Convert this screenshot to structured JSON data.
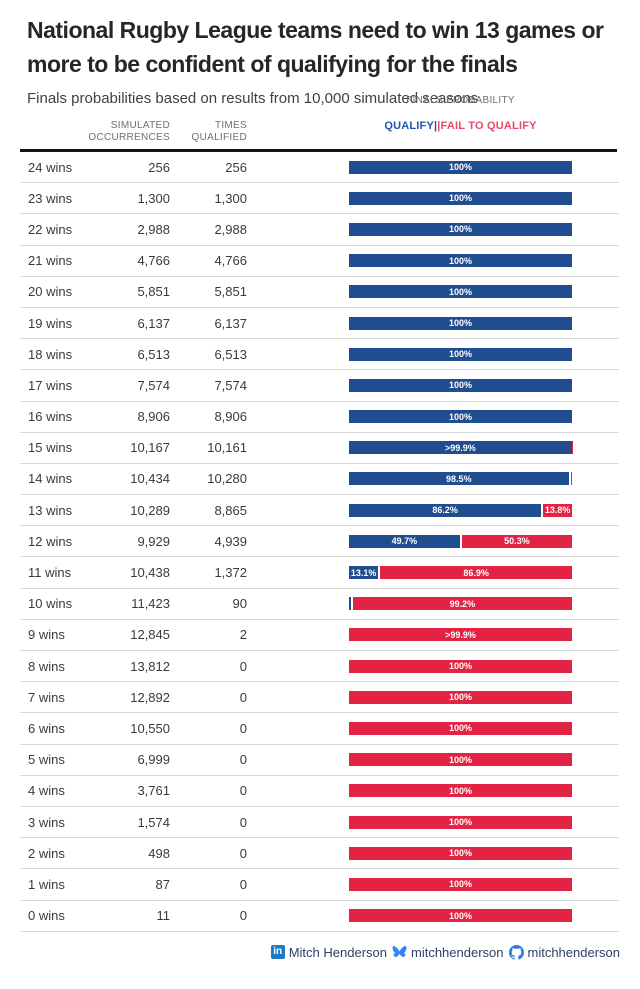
{
  "header": {
    "title_lines": [
      "National Rugby League teams need to win 13 games or",
      "more to be confident of qualifying for the finals"
    ],
    "subtitle": "Finals probabilities based on results from 10,000 simulated seasons"
  },
  "table_header": {
    "occurrences": "SIMULATED\nOCCURRENCES",
    "qualified": "TIMES\nQUALIFIED",
    "probability": "FINALS PROBABILITY",
    "legend_qualify": "QUALIFY|",
    "legend_fail": "|FAIL TO QUALIFY"
  },
  "colors": {
    "qualify_bar": "#1f4d8f",
    "fail_bar": "#e32344",
    "legend_qualify": "#2456a4",
    "legend_fail": "#e8486a",
    "rule": "#141414",
    "row_divider": "#d9d9d9"
  },
  "footer": {
    "linkedin_label": "Mitch Henderson",
    "bluesky_label": "mitchhenderson",
    "github_label": "mitchhenderson",
    "linkedin_icon_color": "#2079c7",
    "bluesky_icon_color": "#3385f4",
    "github_icon_color": "#2d7ed6"
  },
  "chart_data": {
    "type": "bar",
    "subtype": "horizontal-stacked-100pct-with-table",
    "title": "National Rugby League teams need to win 13 games or more to be confident of qualifying for the finals",
    "subtitle": "Finals probabilities based on results from 10,000 simulated seasons",
    "xlabel": "Finals probability (%)",
    "xlim": [
      0,
      100
    ],
    "legend": [
      "QUALIFY",
      "FAIL TO QUALIFY"
    ],
    "legend_position": "top",
    "grid": false,
    "columns": [
      "wins",
      "simulated occurrences",
      "times qualified",
      "qualify %",
      "fail to qualify %"
    ],
    "rows": [
      {
        "label": "24 wins",
        "occurrences": "256",
        "qualified": "256",
        "qualify_pct": 100,
        "fail_pct": 0,
        "qualify_label": "100%",
        "fail_label": ""
      },
      {
        "label": "23 wins",
        "occurrences": "1,300",
        "qualified": "1,300",
        "qualify_pct": 100,
        "fail_pct": 0,
        "qualify_label": "100%",
        "fail_label": ""
      },
      {
        "label": "22 wins",
        "occurrences": "2,988",
        "qualified": "2,988",
        "qualify_pct": 100,
        "fail_pct": 0,
        "qualify_label": "100%",
        "fail_label": ""
      },
      {
        "label": "21 wins",
        "occurrences": "4,766",
        "qualified": "4,766",
        "qualify_pct": 100,
        "fail_pct": 0,
        "qualify_label": "100%",
        "fail_label": ""
      },
      {
        "label": "20 wins",
        "occurrences": "5,851",
        "qualified": "5,851",
        "qualify_pct": 100,
        "fail_pct": 0,
        "qualify_label": "100%",
        "fail_label": ""
      },
      {
        "label": "19 wins",
        "occurrences": "6,137",
        "qualified": "6,137",
        "qualify_pct": 100,
        "fail_pct": 0,
        "qualify_label": "100%",
        "fail_label": ""
      },
      {
        "label": "18 wins",
        "occurrences": "6,513",
        "qualified": "6,513",
        "qualify_pct": 100,
        "fail_pct": 0,
        "qualify_label": "100%",
        "fail_label": ""
      },
      {
        "label": "17 wins",
        "occurrences": "7,574",
        "qualified": "7,574",
        "qualify_pct": 100,
        "fail_pct": 0,
        "qualify_label": "100%",
        "fail_label": ""
      },
      {
        "label": "16 wins",
        "occurrences": "8,906",
        "qualified": "8,906",
        "qualify_pct": 100,
        "fail_pct": 0,
        "qualify_label": "100%",
        "fail_label": ""
      },
      {
        "label": "15 wins",
        "occurrences": "10,167",
        "qualified": "10,161",
        "qualify_pct": 99.94,
        "fail_pct": 0.06,
        "qualify_label": ">99.9%",
        "fail_label": ""
      },
      {
        "label": "14 wins",
        "occurrences": "10,434",
        "qualified": "10,280",
        "qualify_pct": 98.5,
        "fail_pct": 1.5,
        "qualify_label": "98.5%",
        "fail_label": ""
      },
      {
        "label": "13 wins",
        "occurrences": "10,289",
        "qualified": "8,865",
        "qualify_pct": 86.2,
        "fail_pct": 13.8,
        "qualify_label": "86.2%",
        "fail_label": "13.8%"
      },
      {
        "label": "12 wins",
        "occurrences": "9,929",
        "qualified": "4,939",
        "qualify_pct": 49.7,
        "fail_pct": 50.3,
        "qualify_label": "49.7%",
        "fail_label": "50.3%"
      },
      {
        "label": "11 wins",
        "occurrences": "10,438",
        "qualified": "1,372",
        "qualify_pct": 13.1,
        "fail_pct": 86.9,
        "qualify_label": "13.1%",
        "fail_label": "86.9%"
      },
      {
        "label": "10 wins",
        "occurrences": "11,423",
        "qualified": "90",
        "qualify_pct": 0.8,
        "fail_pct": 99.2,
        "qualify_label": "",
        "fail_label": "99.2%"
      },
      {
        "label": "9 wins",
        "occurrences": "12,845",
        "qualified": "2",
        "qualify_pct": 0.02,
        "fail_pct": 99.98,
        "qualify_label": "",
        "fail_label": ">99.9%"
      },
      {
        "label": "8 wins",
        "occurrences": "13,812",
        "qualified": "0",
        "qualify_pct": 0,
        "fail_pct": 100,
        "qualify_label": "",
        "fail_label": "100%"
      },
      {
        "label": "7 wins",
        "occurrences": "12,892",
        "qualified": "0",
        "qualify_pct": 0,
        "fail_pct": 100,
        "qualify_label": "",
        "fail_label": "100%"
      },
      {
        "label": "6 wins",
        "occurrences": "10,550",
        "qualified": "0",
        "qualify_pct": 0,
        "fail_pct": 100,
        "qualify_label": "",
        "fail_label": "100%"
      },
      {
        "label": "5 wins",
        "occurrences": "6,999",
        "qualified": "0",
        "qualify_pct": 0,
        "fail_pct": 100,
        "qualify_label": "",
        "fail_label": "100%"
      },
      {
        "label": "4 wins",
        "occurrences": "3,761",
        "qualified": "0",
        "qualify_pct": 0,
        "fail_pct": 100,
        "qualify_label": "",
        "fail_label": "100%"
      },
      {
        "label": "3 wins",
        "occurrences": "1,574",
        "qualified": "0",
        "qualify_pct": 0,
        "fail_pct": 100,
        "qualify_label": "",
        "fail_label": "100%"
      },
      {
        "label": "2 wins",
        "occurrences": "498",
        "qualified": "0",
        "qualify_pct": 0,
        "fail_pct": 100,
        "qualify_label": "",
        "fail_label": "100%"
      },
      {
        "label": "1 wins",
        "occurrences": "87",
        "qualified": "0",
        "qualify_pct": 0,
        "fail_pct": 100,
        "qualify_label": "",
        "fail_label": "100%"
      },
      {
        "label": "0 wins",
        "occurrences": "11",
        "qualified": "0",
        "qualify_pct": 0,
        "fail_pct": 100,
        "qualify_label": "",
        "fail_label": "100%"
      }
    ]
  }
}
